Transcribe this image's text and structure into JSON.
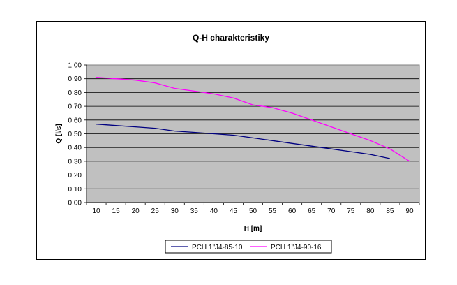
{
  "chart_data": {
    "type": "line",
    "title": "Q-H charakteristiky",
    "xlabel": "H [m]",
    "ylabel": "Q [l/s]",
    "xlim": [
      10,
      90
    ],
    "ylim": [
      0,
      1.0
    ],
    "x_ticks": [
      "10",
      "15",
      "20",
      "25",
      "30",
      "35",
      "40",
      "45",
      "50",
      "55",
      "60",
      "65",
      "70",
      "75",
      "80",
      "85",
      "90"
    ],
    "y_ticks": [
      "0,00",
      "0,10",
      "0,20",
      "0,30",
      "0,40",
      "0,50",
      "0,60",
      "0,70",
      "0,80",
      "0,90",
      "1,00"
    ],
    "grid": "horizontal",
    "plot_background": "#C0C0C0",
    "legend_position": "bottom",
    "series": [
      {
        "name": "PCH 1\"J4-85-10",
        "color": "#000080",
        "x": [
          10,
          15,
          20,
          25,
          30,
          35,
          40,
          45,
          50,
          55,
          60,
          65,
          70,
          75,
          80,
          85
        ],
        "y": [
          0.57,
          0.56,
          0.55,
          0.54,
          0.52,
          0.51,
          0.5,
          0.49,
          0.47,
          0.45,
          0.43,
          0.41,
          0.39,
          0.37,
          0.35,
          0.32
        ]
      },
      {
        "name": "PCH 1\"J4-90-16",
        "color": "#FF00FF",
        "x": [
          10,
          15,
          20,
          25,
          30,
          35,
          40,
          45,
          50,
          55,
          60,
          65,
          70,
          75,
          80,
          85,
          90
        ],
        "y": [
          0.91,
          0.9,
          0.89,
          0.87,
          0.83,
          0.81,
          0.79,
          0.76,
          0.71,
          0.69,
          0.65,
          0.6,
          0.55,
          0.5,
          0.45,
          0.39,
          0.3
        ]
      }
    ]
  }
}
